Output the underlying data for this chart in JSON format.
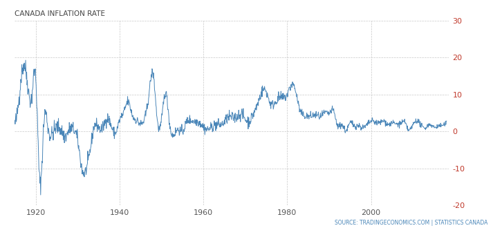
{
  "title": "CANADA INFLATION RATE",
  "source_text": "SOURCE: TRADINGECONOMICS.COM | STATISTICS CANADA",
  "line_color": "#4a86b8",
  "background_color": "#ffffff",
  "grid_color": "#c8c8c8",
  "title_color": "#444444",
  "source_color": "#4a86b8",
  "ylim": [
    -20,
    30
  ],
  "yticks": [
    -20,
    -10,
    0,
    10,
    20,
    30
  ],
  "xlim": [
    1915.0,
    2018.5
  ],
  "xticks": [
    1920,
    1940,
    1960,
    1980,
    2000
  ],
  "line_width": 0.7,
  "yearly_data": {
    "years": [
      1915,
      1916,
      1917,
      1918,
      1919,
      1920,
      1921,
      1922,
      1923,
      1924,
      1925,
      1926,
      1927,
      1928,
      1929,
      1930,
      1931,
      1932,
      1933,
      1934,
      1935,
      1936,
      1937,
      1938,
      1939,
      1940,
      1941,
      1942,
      1943,
      1944,
      1945,
      1946,
      1947,
      1948,
      1949,
      1950,
      1951,
      1952,
      1953,
      1954,
      1955,
      1956,
      1957,
      1958,
      1959,
      1960,
      1961,
      1962,
      1963,
      1964,
      1965,
      1966,
      1967,
      1968,
      1969,
      1970,
      1971,
      1972,
      1973,
      1974,
      1975,
      1976,
      1977,
      1978,
      1979,
      1980,
      1981,
      1982,
      1983,
      1984,
      1985,
      1986,
      1987,
      1988,
      1989,
      1990,
      1991,
      1992,
      1993,
      1994,
      1995,
      1996,
      1997,
      1998,
      1999,
      2000,
      2001,
      2002,
      2003,
      2004,
      2005,
      2006,
      2007,
      2008,
      2009,
      2010,
      2011,
      2012,
      2013,
      2014,
      2015,
      2016,
      2017,
      2018
    ],
    "values": [
      2.2,
      9.0,
      17.8,
      13.5,
      9.1,
      14.5,
      -14.0,
      3.2,
      0.5,
      -0.5,
      1.0,
      0.5,
      -1.5,
      0.5,
      0.5,
      -2.5,
      -10.0,
      -10.5,
      -5.0,
      1.5,
      1.0,
      1.0,
      3.5,
      1.5,
      -0.5,
      3.0,
      5.0,
      8.0,
      4.5,
      3.0,
      2.0,
      3.5,
      10.0,
      15.5,
      3.0,
      3.0,
      10.5,
      1.5,
      -0.8,
      0.5,
      0.0,
      2.5,
      3.0,
      2.7,
      2.5,
      1.2,
      0.5,
      1.2,
      1.8,
      1.8,
      2.5,
      3.8,
      3.7,
      4.0,
      4.7,
      3.3,
      2.9,
      4.9,
      7.6,
      10.9,
      10.7,
      7.5,
      7.7,
      9.0,
      9.1,
      10.0,
      12.6,
      10.9,
      5.8,
      4.3,
      4.0,
      4.2,
      4.4,
      4.0,
      5.0,
      4.8,
      5.6,
      1.5,
      1.8,
      0.2,
      2.2,
      1.6,
      1.6,
      1.0,
      1.7,
      2.7,
      2.5,
      2.3,
      2.8,
      1.9,
      2.2,
      2.0,
      2.1,
      2.4,
      0.3,
      1.8,
      2.9,
      1.5,
      1.0,
      1.9,
      1.1,
      1.4,
      1.6,
      2.3
    ]
  }
}
